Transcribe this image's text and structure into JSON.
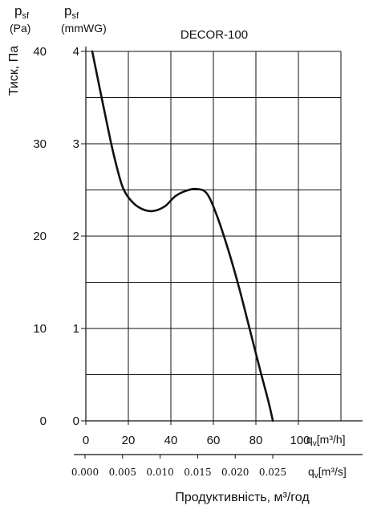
{
  "chart_data": {
    "type": "line",
    "title": "DECOR-100",
    "ylabel": "Тиск, Па",
    "xlabel": "Продуктивність, м³/год",
    "y_axis_left": {
      "label_main": "p",
      "label_sub": "sf",
      "unit": "(Pa)",
      "ticks": [
        "0",
        "10",
        "20",
        "30",
        "40"
      ],
      "range": [
        0,
        40
      ]
    },
    "y_axis_right": {
      "label_main": "p",
      "label_sub": "sf",
      "unit": "(mmWG)",
      "ticks": [
        "0",
        "1",
        "2",
        "3",
        "4"
      ],
      "range": [
        0,
        4
      ]
    },
    "x_axis_top": {
      "ticks": [
        "0",
        "20",
        "40",
        "60",
        "80",
        "100"
      ],
      "unit_label": "q",
      "unit_sub": "v",
      "unit": "[m³/h]",
      "range": [
        0,
        120
      ]
    },
    "x_axis_bottom": {
      "ticks": [
        "0.000",
        "0.005",
        "0.010",
        "0.015",
        "0.020",
        "0.025"
      ],
      "unit_label": "q",
      "unit_sub": "v",
      "unit": "[m³/s]"
    },
    "grid": true,
    "series": [
      {
        "values": [
          {
            "x": 3.0,
            "y": 40
          },
          {
            "x": 7.0,
            "y": 35.5
          },
          {
            "x": 11.0,
            "y": 31
          },
          {
            "x": 14.0,
            "y": 28
          },
          {
            "x": 17.0,
            "y": 25.5
          },
          {
            "x": 20.0,
            "y": 24.2
          },
          {
            "x": 25.0,
            "y": 23.1
          },
          {
            "x": 31.0,
            "y": 22.7
          },
          {
            "x": 37.0,
            "y": 23.2
          },
          {
            "x": 42.0,
            "y": 24.3
          },
          {
            "x": 47.0,
            "y": 24.9
          },
          {
            "x": 52.0,
            "y": 25.1
          },
          {
            "x": 57.0,
            "y": 24.6
          },
          {
            "x": 62.0,
            "y": 22.0
          },
          {
            "x": 67.0,
            "y": 18.5
          },
          {
            "x": 72.0,
            "y": 14.5
          },
          {
            "x": 77.0,
            "y": 10.0
          },
          {
            "x": 82.0,
            "y": 5.5
          },
          {
            "x": 86.0,
            "y": 2.0
          },
          {
            "x": 88.0,
            "y": 0
          }
        ]
      }
    ]
  }
}
